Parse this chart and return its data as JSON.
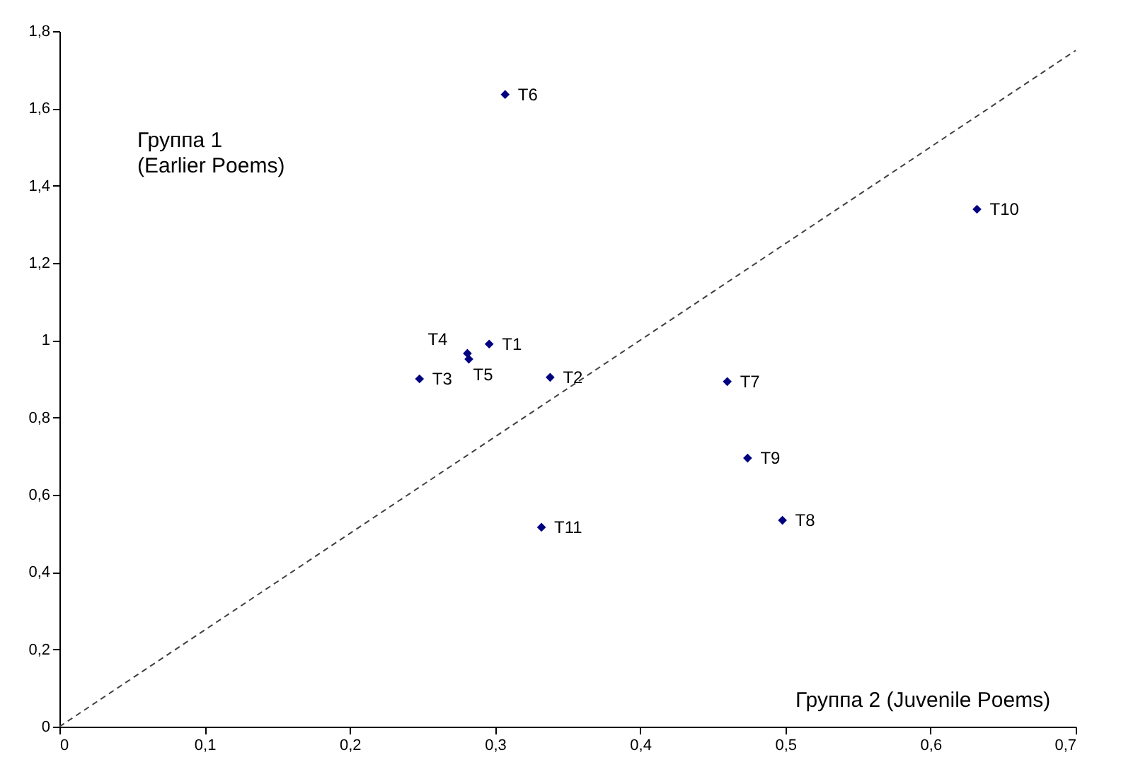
{
  "chart_data": {
    "type": "scatter",
    "x": [
      0.296,
      0.338,
      0.248,
      0.281,
      0.282,
      0.307,
      0.46,
      0.498,
      0.474,
      0.632,
      0.332
    ],
    "series": [
      {
        "color": "#000080",
        "values": [
          0.99,
          0.904,
          0.9,
          0.966,
          0.951,
          1.636,
          0.893,
          0.534,
          0.695,
          1.339,
          0.516
        ],
        "value_labels": [
          "T1",
          "T2",
          "T3",
          "T4",
          "T5",
          "T6",
          "T7",
          "T8",
          "T9",
          "T10",
          "T11"
        ],
        "marker": "diamond"
      },
      {
        "type": "line",
        "x": [
          0,
          0.7
        ],
        "values": [
          0,
          1.75
        ],
        "color": "#404040",
        "line_style": "dashed",
        "marker": "none"
      }
    ],
    "xlim": [
      0,
      0.7
    ],
    "ylim": [
      0,
      1.8
    ],
    "xticks": [
      0,
      {
        "value": 0.1,
        "label": "0,1"
      },
      {
        "value": 0.2,
        "label": "0,2"
      },
      {
        "value": 0.3,
        "label": "0,3"
      },
      {
        "value": 0.4,
        "label": "0,4"
      },
      {
        "value": 0.5,
        "label": "0,5"
      },
      {
        "value": 0.6,
        "label": "0,6"
      },
      {
        "value": 0.7,
        "label": "0,7"
      }
    ],
    "yticks": [
      0,
      {
        "value": 0.2,
        "label": "0,2"
      },
      {
        "value": 0.4,
        "label": "0,4"
      },
      {
        "value": 0.6,
        "label": "0,6"
      },
      {
        "value": 0.8,
        "label": "0,8"
      },
      1,
      {
        "value": 1.2,
        "label": "1,2"
      },
      {
        "value": 1.4,
        "label": "1,4"
      },
      {
        "value": 1.6,
        "label": "1,6"
      },
      {
        "value": 1.8,
        "label": "1,8"
      }
    ],
    "grid": false,
    "annotations": [
      "Группа 1\n(Earlier Poems)",
      "Группа 2 (Juvenile Poems)"
    ]
  }
}
